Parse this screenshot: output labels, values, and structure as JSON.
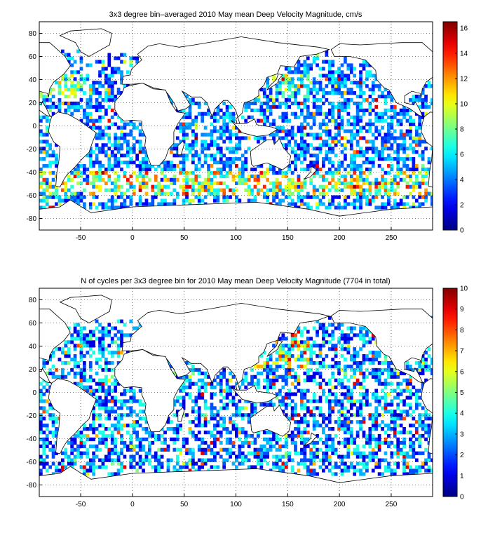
{
  "chart_data": [
    {
      "type": "heatmap",
      "title": "3x3 degree bin–averaged 2010 May mean Deep Velocity Magnitude, cm/s",
      "xlim": [
        -90,
        290
      ],
      "ylim": [
        -90,
        90
      ],
      "xticks": [
        -50,
        0,
        50,
        100,
        150,
        200,
        250
      ],
      "yticks": [
        80,
        60,
        40,
        20,
        0,
        -20,
        -40,
        -60,
        -80
      ],
      "grid": true,
      "grid_style": "dotted",
      "colormap": "jet",
      "colorbar": {
        "min": 0,
        "max": 16.5,
        "ticks": [
          16,
          14,
          12,
          10,
          8,
          6,
          4,
          2,
          0
        ]
      },
      "bin_size_deg": 3
    },
    {
      "type": "heatmap",
      "title": "N of cycles per 3x3 degree bin for 2010 May mean Deep Velocity Magnitude (7704 in total)",
      "xlim": [
        -90,
        290
      ],
      "ylim": [
        -90,
        90
      ],
      "xticks": [
        -50,
        0,
        50,
        100,
        150,
        200,
        250
      ],
      "yticks": [
        80,
        60,
        40,
        20,
        0,
        -20,
        -40,
        -60,
        -80
      ],
      "grid": true,
      "grid_style": "dotted",
      "colormap": "jet",
      "colorbar": {
        "min": 0,
        "max": 10,
        "ticks": [
          10,
          9,
          8,
          7,
          6,
          5,
          4,
          3,
          2,
          1,
          0
        ]
      },
      "bin_size_deg": 3
    }
  ]
}
